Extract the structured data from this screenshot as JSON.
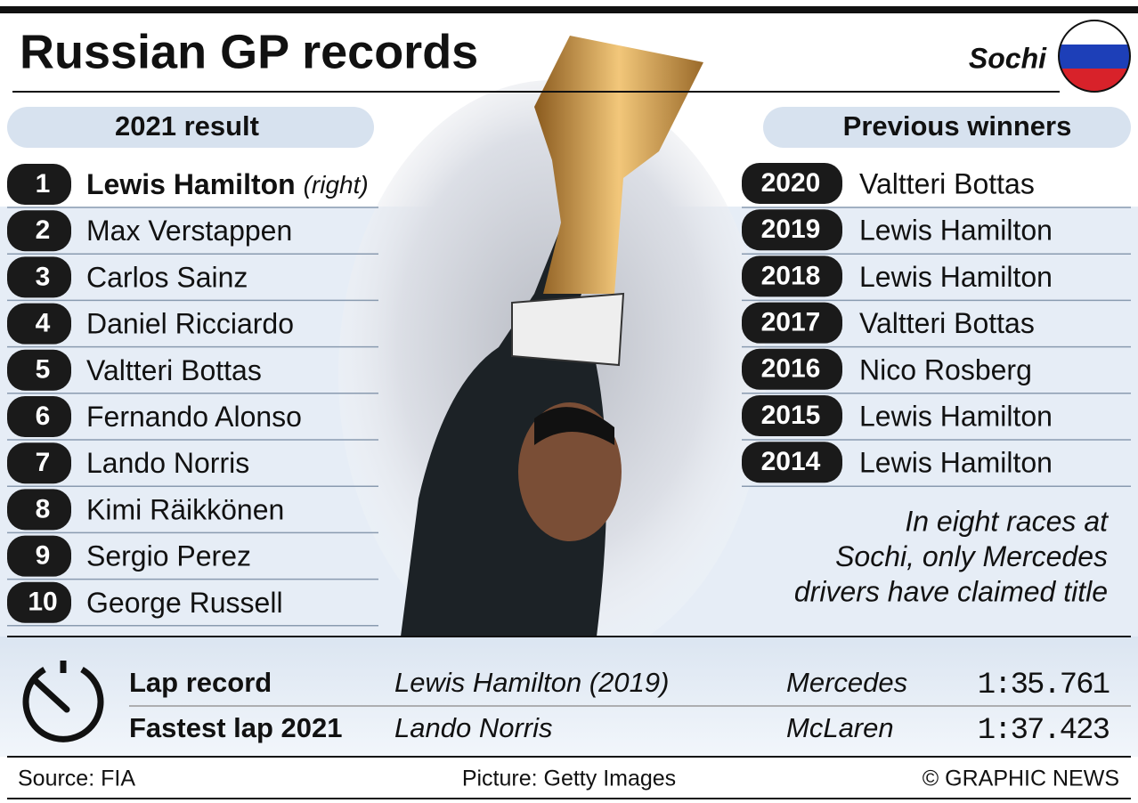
{
  "header": {
    "title": "Russian GP records",
    "location": "Sochi"
  },
  "result": {
    "title": "2021 result",
    "rows": [
      {
        "position": "1",
        "driver": "Lewis Hamilton",
        "note": "(right)"
      },
      {
        "position": "2",
        "driver": "Max Verstappen"
      },
      {
        "position": "3",
        "driver": "Carlos Sainz"
      },
      {
        "position": "4",
        "driver": "Daniel Ricciardo"
      },
      {
        "position": "5",
        "driver": "Valtteri Bottas"
      },
      {
        "position": "6",
        "driver": "Fernando Alonso"
      },
      {
        "position": "7",
        "driver": "Lando Norris"
      },
      {
        "position": "8",
        "driver": "Kimi Räikkönen"
      },
      {
        "position": "9",
        "driver": "Sergio Perez"
      },
      {
        "position": "10",
        "driver": "George Russell"
      }
    ]
  },
  "previous_winners": {
    "title": "Previous winners",
    "rows": [
      {
        "year": "2020",
        "driver": "Valtteri Bottas"
      },
      {
        "year": "2019",
        "driver": "Lewis Hamilton"
      },
      {
        "year": "2018",
        "driver": "Lewis Hamilton"
      },
      {
        "year": "2017",
        "driver": "Valtteri Bottas"
      },
      {
        "year": "2016",
        "driver": "Nico Rosberg"
      },
      {
        "year": "2015",
        "driver": "Lewis Hamilton"
      },
      {
        "year": "2014",
        "driver": "Lewis Hamilton"
      }
    ]
  },
  "note": [
    "In eight races at",
    "Sochi, only Mercedes",
    "drivers have claimed title"
  ],
  "laps": {
    "rows": [
      {
        "label": "Lap record",
        "driver": "Lewis Hamilton (2019)",
        "team": "Mercedes",
        "time": "1:35.761"
      },
      {
        "label": "Fastest lap 2021",
        "driver": "Lando Norris",
        "team": "McLaren",
        "time": "1:37.423"
      }
    ]
  },
  "footer": {
    "source": "Source: FIA",
    "picture": "Picture: Getty Images",
    "credit": "© GRAPHIC NEWS"
  }
}
